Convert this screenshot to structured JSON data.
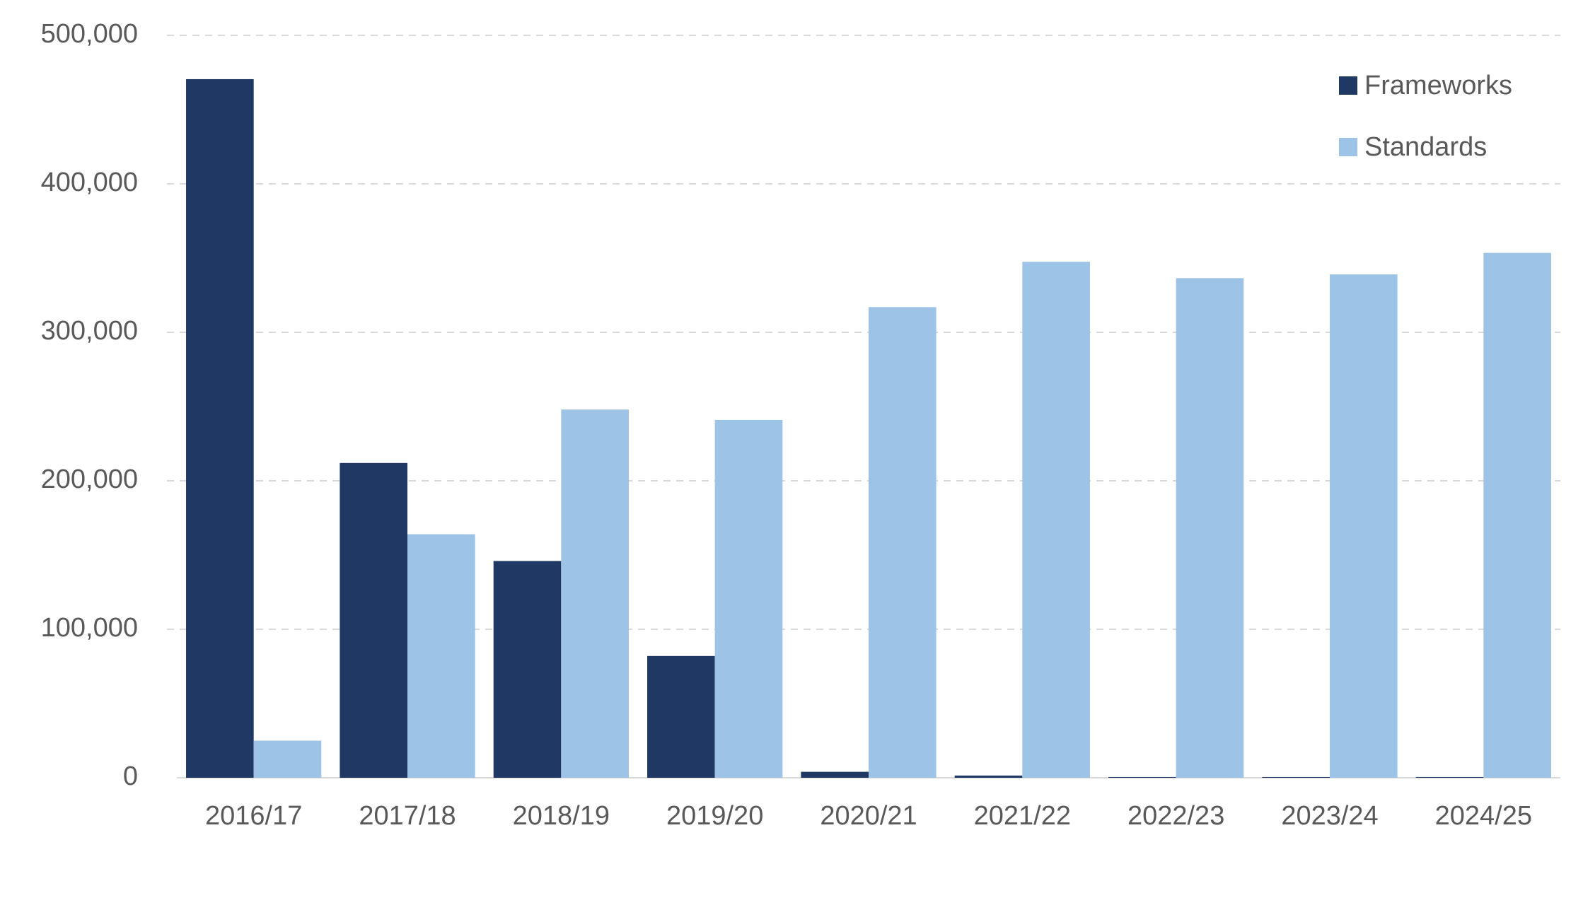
{
  "chart_data": {
    "type": "bar",
    "categories": [
      "2016/17",
      "2017/18",
      "2018/19",
      "2019/20",
      "2020/21",
      "2021/22",
      "2022/23",
      "2023/24",
      "2024/25"
    ],
    "series": [
      {
        "name": "Frameworks",
        "color": "#203864",
        "values": [
          470500,
          212000,
          146000,
          82000,
          4000,
          1500,
          500,
          500,
          500
        ]
      },
      {
        "name": "Standards",
        "color": "#9dc3e6",
        "values": [
          25000,
          164000,
          248000,
          241000,
          317000,
          347500,
          336500,
          339000,
          353500
        ]
      }
    ],
    "ylim": [
      0,
      500000
    ],
    "yticks": [
      0,
      {
        "value": 100000,
        "label": "100,000"
      },
      {
        "value": 200000,
        "label": "200,000"
      },
      {
        "value": 300000,
        "label": "300,000"
      },
      {
        "value": 400000,
        "label": "400,000"
      },
      {
        "value": 500000,
        "label": "500,000"
      }
    ],
    "grid": true,
    "legend": "top-right"
  }
}
